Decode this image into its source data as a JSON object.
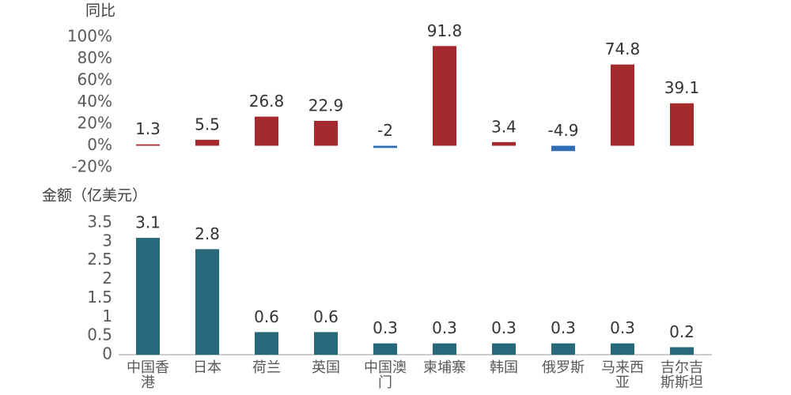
{
  "chart_data": [
    {
      "type": "bar",
      "title": "同比",
      "values": [
        1.3,
        5.5,
        26.8,
        22.9,
        -2,
        91.8,
        3.4,
        -4.9,
        74.8,
        39.1
      ],
      "color": "#a52a2d",
      "negative_color": "#2e6db4",
      "ylim": [
        -20,
        100
      ],
      "yticks": [
        {
          "value": -20,
          "label": "-20%"
        },
        {
          "value": 0,
          "label": "0%"
        },
        {
          "value": 20,
          "label": "20%"
        },
        {
          "value": 40,
          "label": "40%"
        },
        {
          "value": 60,
          "label": "60%"
        },
        {
          "value": 80,
          "label": "80%"
        },
        {
          "value": 100,
          "label": "100%"
        }
      ]
    },
    {
      "type": "bar",
      "title": "金额（亿美元）",
      "categories": [
        "中国香港",
        "日本",
        "荷兰",
        "英国",
        "中国澳门",
        "柬埔寨",
        "韩国",
        "俄罗斯",
        "马来西亚",
        "吉尔吉斯斯坦"
      ],
      "values": [
        3.1,
        2.8,
        0.6,
        0.6,
        0.3,
        0.3,
        0.3,
        0.3,
        0.3,
        0.2
      ],
      "color": "#27697a",
      "ylim": [
        0,
        3.5
      ],
      "yticks": [
        0,
        0.5,
        1,
        1.5,
        2,
        2.5,
        3,
        3.5
      ]
    }
  ]
}
